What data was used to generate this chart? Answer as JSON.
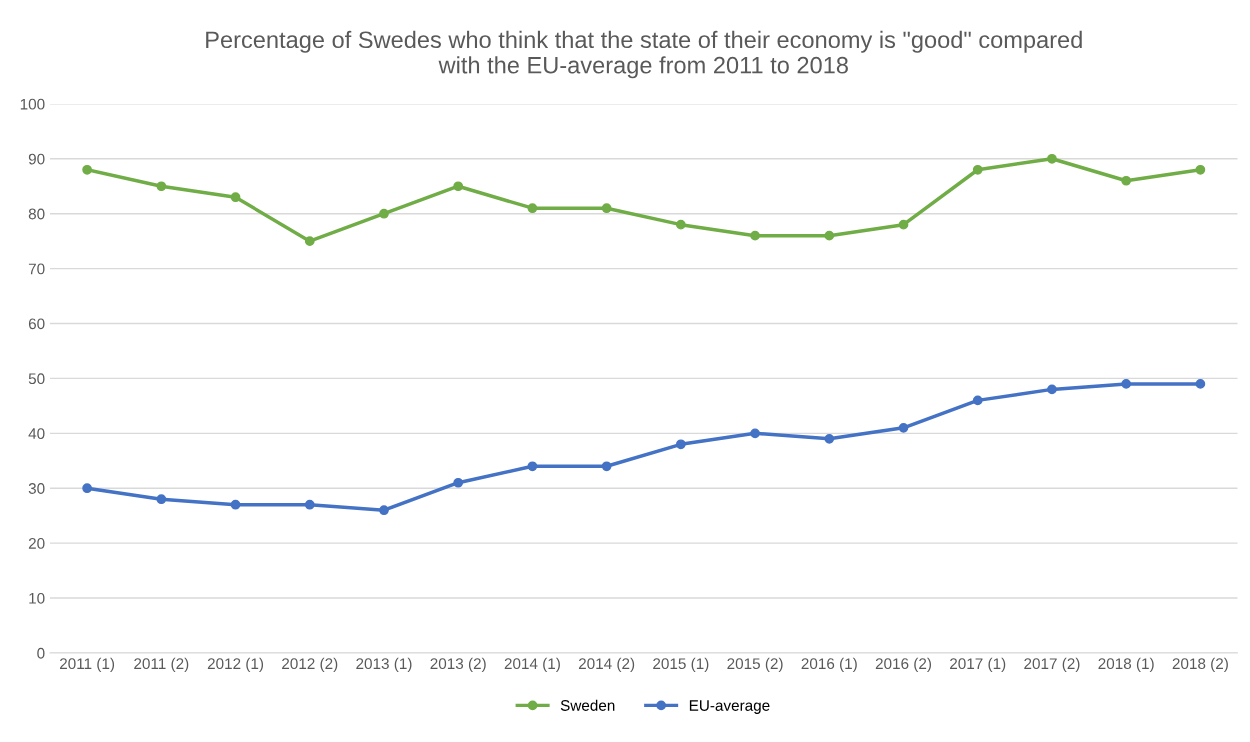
{
  "chart_data": {
    "type": "line",
    "title": "Percentage of Swedes who think that the state of their economy is \"good\" compared\nwith the EU-average from 2011 to 2018",
    "categories": [
      "2011 (1)",
      "2011 (2)",
      "2012 (1)",
      "2012 (2)",
      "2013 (1)",
      "2013 (2)",
      "2014 (1)",
      "2014 (2)",
      "2015 (1)",
      "2015 (2)",
      "2016 (1)",
      "2016 (2)",
      "2017 (1)",
      "2017 (2)",
      "2018 (1)",
      "2018 (2)"
    ],
    "series": [
      {
        "name": "Sweden",
        "color": "#70ad47",
        "values": [
          88,
          85,
          83,
          75,
          80,
          85,
          81,
          81,
          78,
          76,
          76,
          78,
          88,
          90,
          86,
          88
        ]
      },
      {
        "name": "EU-average",
        "color": "#4472c4",
        "values": [
          30,
          28,
          27,
          27,
          26,
          31,
          34,
          34,
          38,
          40,
          39,
          41,
          46,
          48,
          49,
          49
        ]
      }
    ],
    "ylim": [
      0,
      100
    ],
    "yticks": [
      0,
      10,
      20,
      30,
      40,
      50,
      60,
      70,
      80,
      90,
      100
    ],
    "grid": "y",
    "legend": "bottom",
    "marker": "circle",
    "line_style": "solid"
  }
}
